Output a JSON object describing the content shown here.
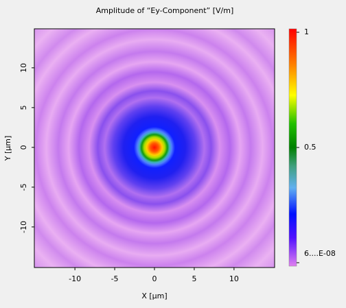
{
  "chart_data": {
    "type": "heatmap",
    "title": "Amplitude of “Ey-Component”  [V/m]",
    "x_label": "X [µm]",
    "y_label": "Y [µm]",
    "xlim": [
      -15.1,
      15.1
    ],
    "xticks": [
      -10,
      -5,
      0,
      5,
      10
    ],
    "ylim": [
      -15.1,
      14.9
    ],
    "yticks": [
      -10,
      -5,
      0,
      5,
      10
    ],
    "clim": [
      -0.015,
      1.015
    ],
    "cticks": [
      1,
      0.5,
      {
        "value": 6e-08,
        "label": "6....E-08"
      }
    ]
  }
}
